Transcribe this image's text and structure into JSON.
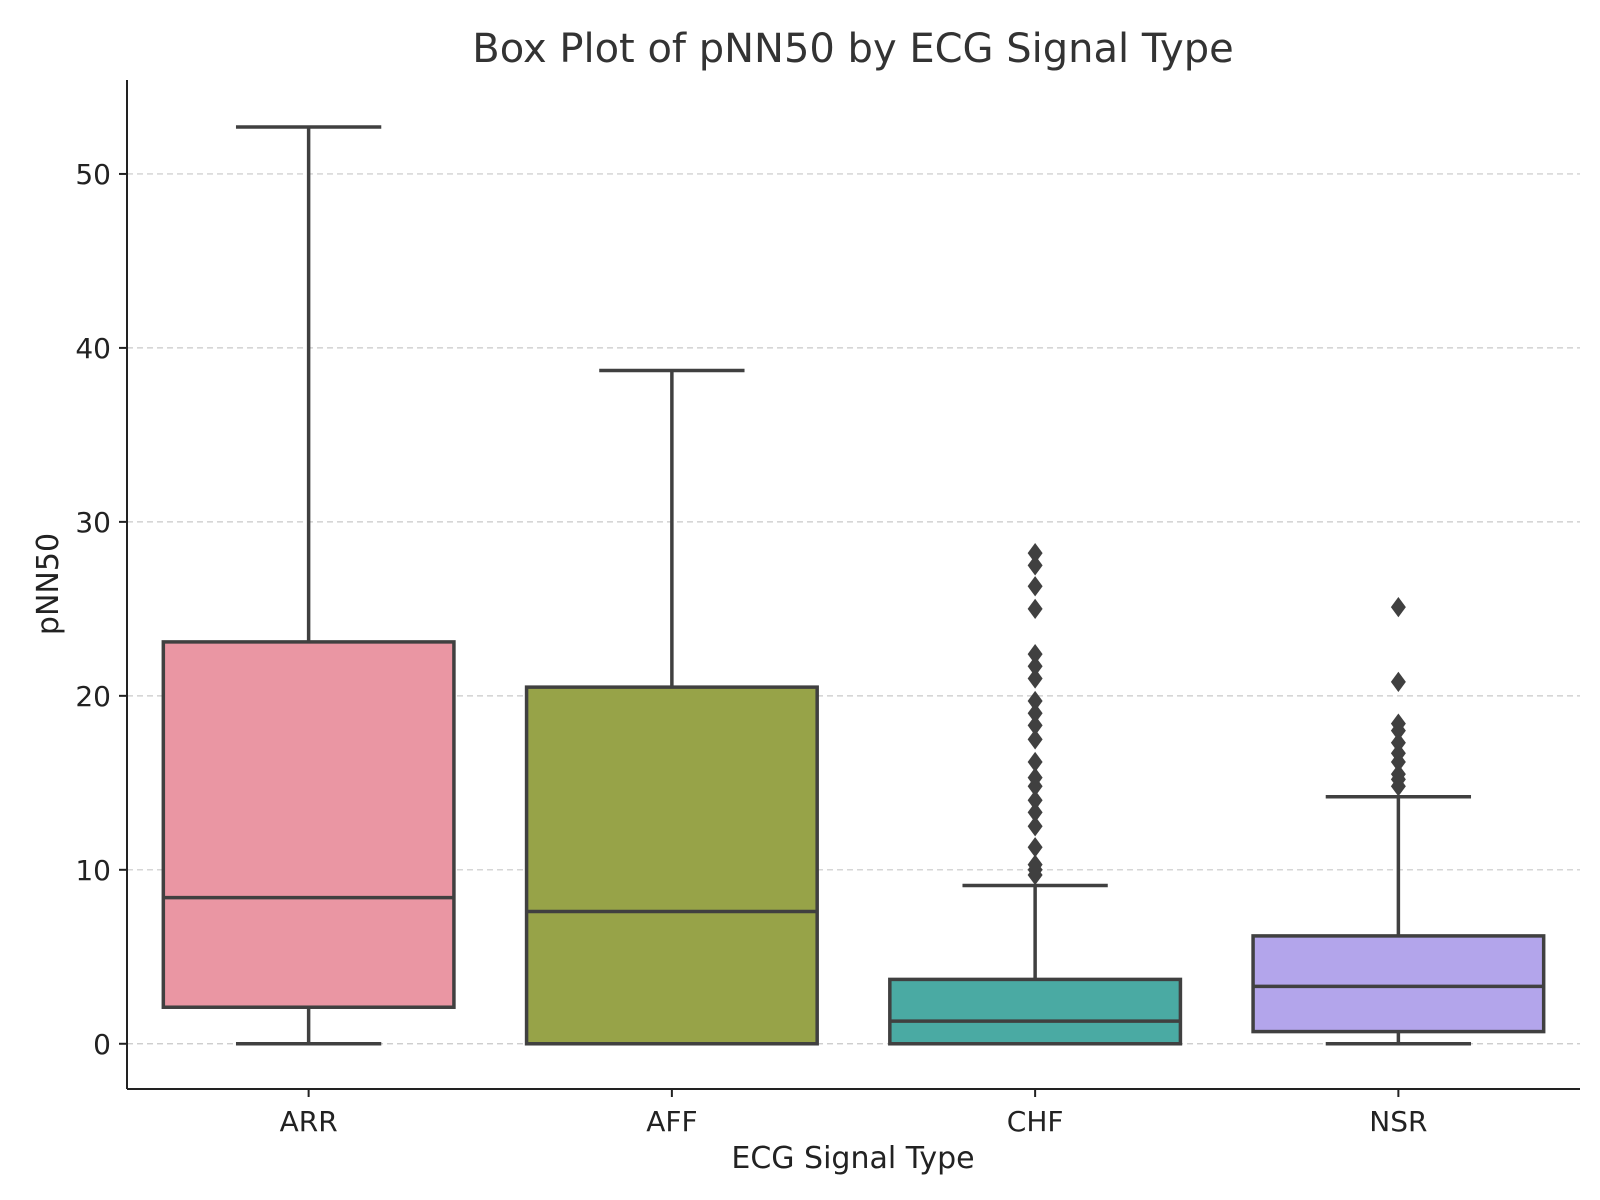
{
  "chart_data": {
    "type": "box",
    "title": "Box Plot of pNN50 by ECG Signal Type",
    "xlabel": "ECG Signal Type",
    "ylabel": "pNN50",
    "ylim": [
      -2.6,
      55.4
    ],
    "yticks": [
      0,
      10,
      20,
      30,
      40,
      50
    ],
    "grid": "y-dashed",
    "categories": [
      "ARR",
      "AFF",
      "CHF",
      "NSR"
    ],
    "boxes": [
      {
        "category": "ARR",
        "whisker_low": 0.0,
        "q1": 2.1,
        "median": 8.4,
        "q3": 23.1,
        "whisker_high": 52.7,
        "fliers": [],
        "color": "#EA96A3"
      },
      {
        "category": "AFF",
        "whisker_low": 0.0,
        "q1": 0.0,
        "median": 7.6,
        "q3": 20.5,
        "whisker_high": 38.7,
        "fliers": [],
        "color": "#97A348"
      },
      {
        "category": "CHF",
        "whisker_low": 0.0,
        "q1": 0.0,
        "median": 1.3,
        "q3": 3.7,
        "whisker_high": 9.1,
        "fliers": [
          9.7,
          10.0,
          10.3,
          11.3,
          12.5,
          13.3,
          14.0,
          14.8,
          15.3,
          16.2,
          17.5,
          18.3,
          19.0,
          19.7,
          21.0,
          21.7,
          22.4,
          25.0,
          26.3,
          27.5,
          28.2
        ],
        "color": "#4AAAA3"
      },
      {
        "category": "NSR",
        "whisker_low": 0.0,
        "q1": 0.7,
        "median": 3.3,
        "q3": 6.2,
        "whisker_high": 14.2,
        "fliers": [
          14.8,
          15.2,
          15.5,
          16.2,
          16.7,
          17.3,
          18.0,
          18.4,
          20.8,
          25.1
        ],
        "color": "#B3A5EB"
      }
    ]
  }
}
